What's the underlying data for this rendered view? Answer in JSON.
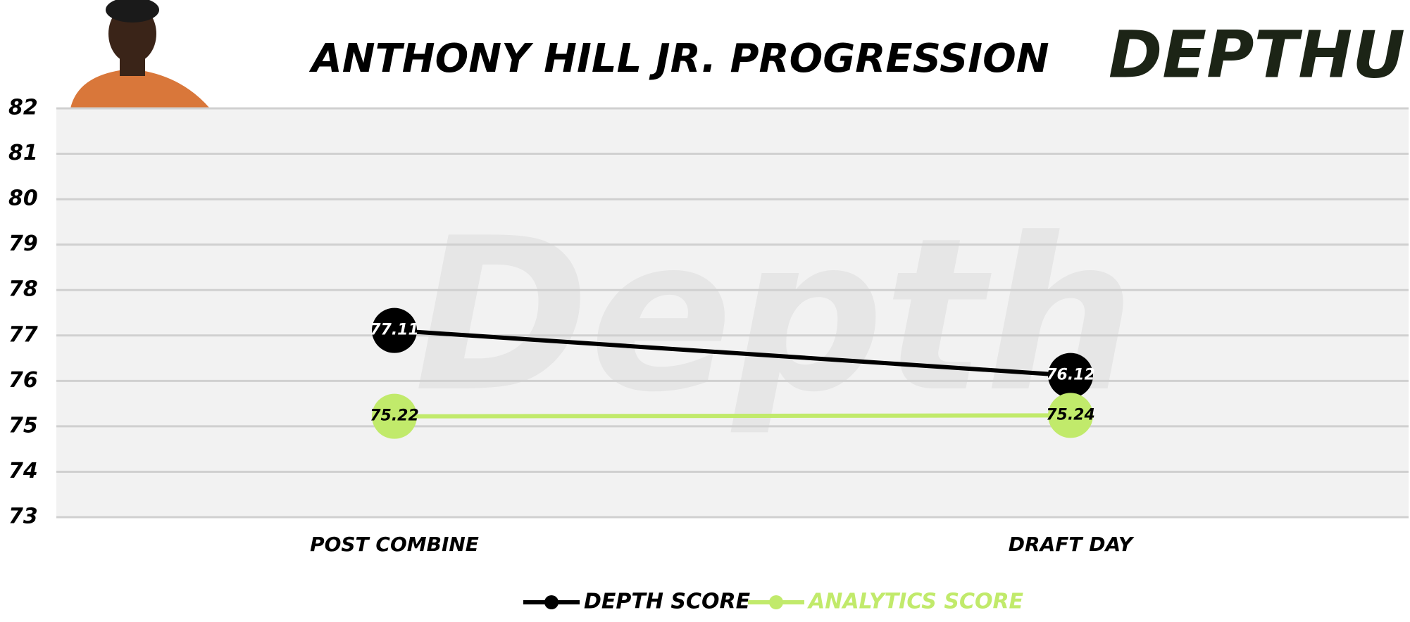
{
  "chart_data": {
    "type": "line",
    "title": "ANTHONY HILL JR. PROGRESSION",
    "logo": "DEPTHU",
    "watermark": "Depth",
    "categories": [
      "POST COMBINE",
      "DRAFT DAY"
    ],
    "series": [
      {
        "name": "DEPTH SCORE",
        "color": "#000000",
        "values": [
          77.11,
          76.12
        ]
      },
      {
        "name": "ANALYTICS SCORE",
        "color": "#c1ea6b",
        "values": [
          75.22,
          75.24
        ]
      }
    ],
    "ylim": [
      73,
      82
    ],
    "yticks": [
      73,
      74,
      75,
      76,
      77,
      78,
      79,
      80,
      81,
      82
    ],
    "grid": true,
    "legend": "bottom"
  }
}
